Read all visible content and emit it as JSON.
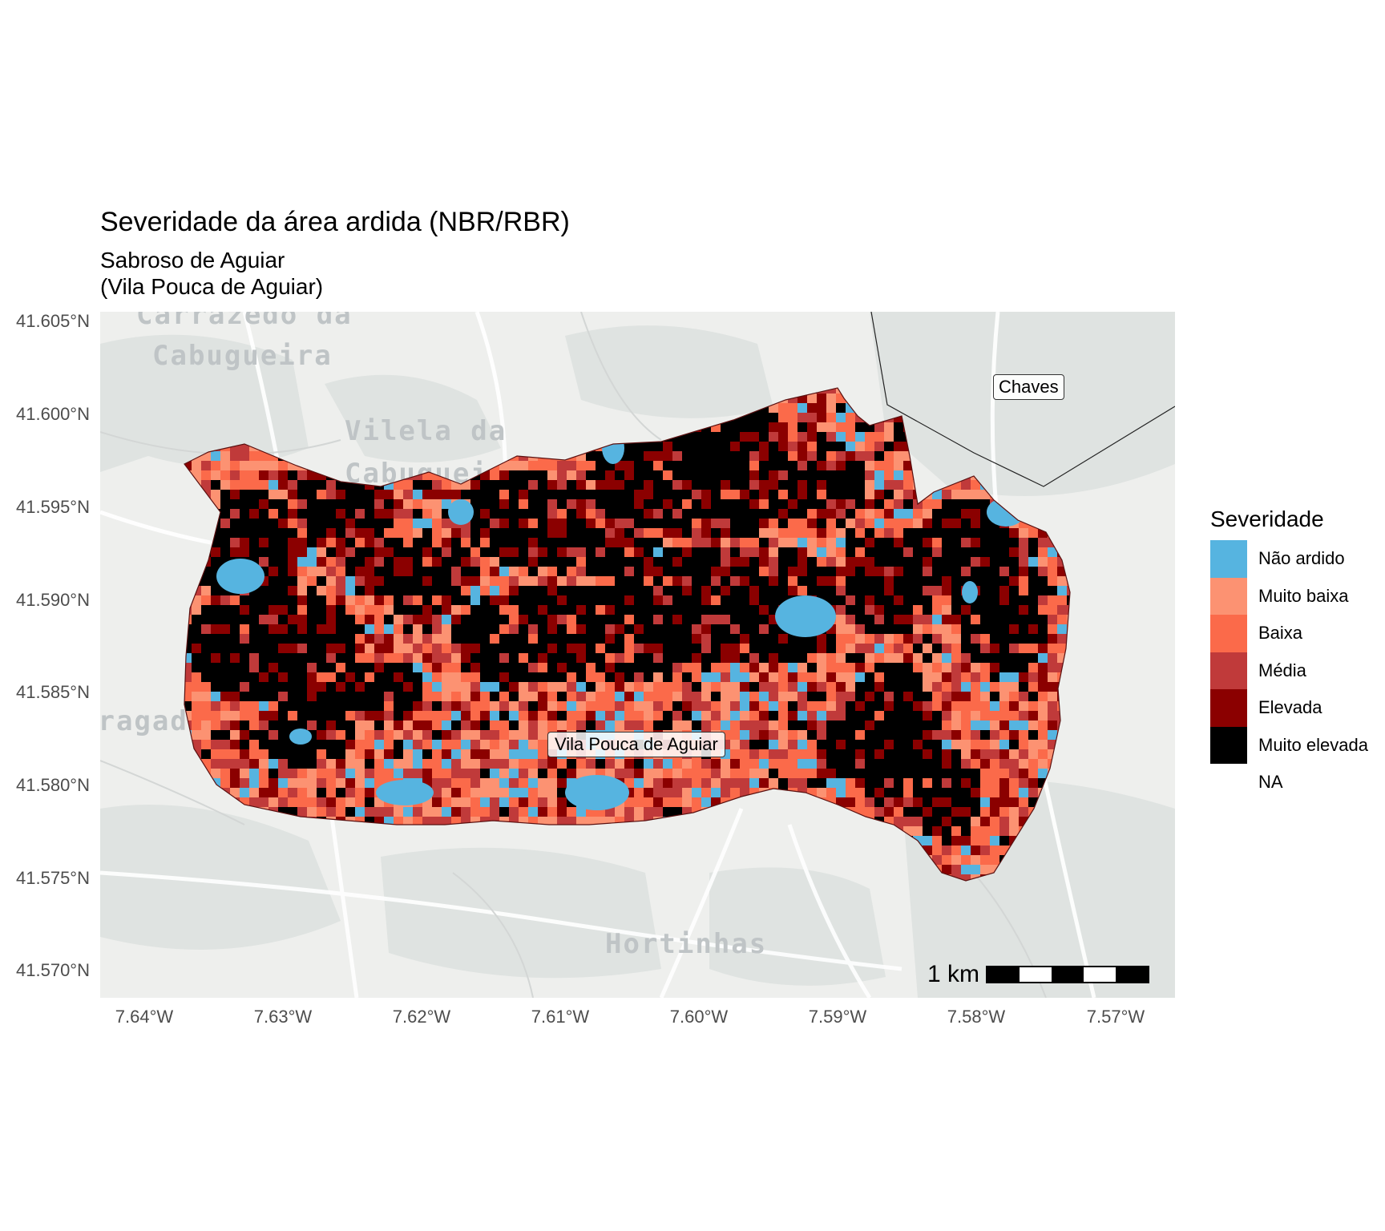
{
  "title": "Severidade da área ardida (NBR/RBR)",
  "subtitle": [
    "Sabroso de Aguiar",
    "(Vila Pouca de Aguiar)"
  ],
  "y_ticks": [
    "41.605°N",
    "41.600°N",
    "41.595°N",
    "41.590°N",
    "41.585°N",
    "41.580°N",
    "41.575°N",
    "41.570°N"
  ],
  "x_ticks": [
    "7.64°W",
    "7.63°W",
    "7.62°W",
    "7.61°W",
    "7.60°W",
    "7.59°W",
    "7.58°W",
    "7.57°W"
  ],
  "basemap_labels": [
    "Carrazedo da",
    "Cabugueira",
    "Vilela da",
    "Cabugueira",
    "Bragado",
    "Hortinhas"
  ],
  "place_labels": [
    "Vila Pouca de Aguiar",
    "Chaves"
  ],
  "scale_bar": {
    "label": "1 km"
  },
  "legend": {
    "title": "Severidade",
    "items": [
      {
        "label": "Não ardido",
        "color": "#56b4e0"
      },
      {
        "label": "Muito baixa",
        "color": "#fc9272"
      },
      {
        "label": "Baixa",
        "color": "#fb6a4a"
      },
      {
        "label": "Média",
        "color": "#c03a3a"
      },
      {
        "label": "Elevada",
        "color": "#8b0000"
      },
      {
        "label": "Muito elevada",
        "color": "#000000"
      },
      {
        "label": "NA",
        "color": ""
      }
    ]
  }
}
